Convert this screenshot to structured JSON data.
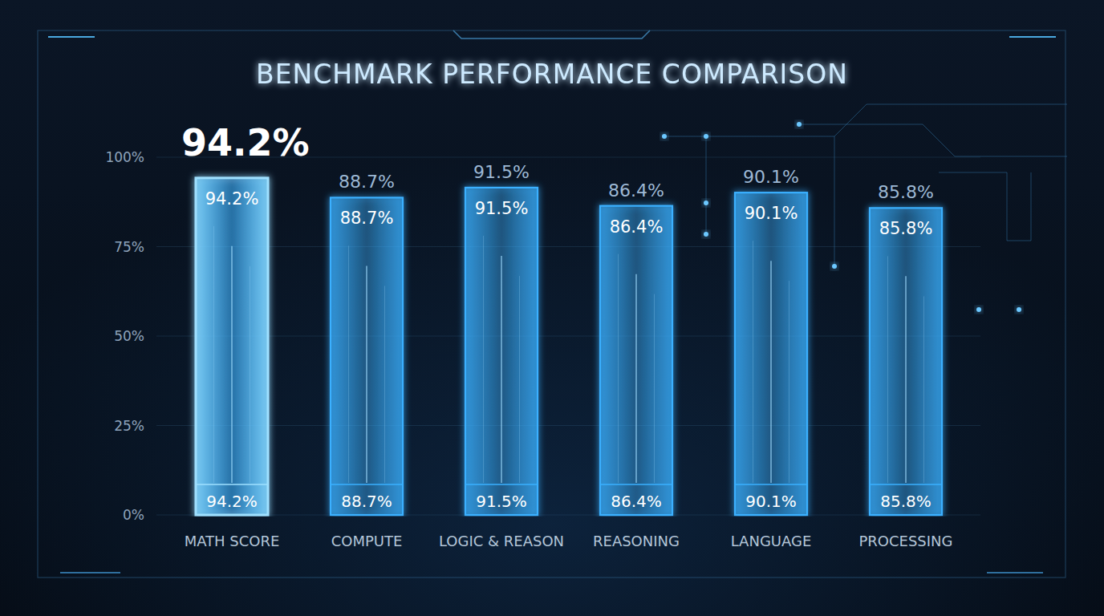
{
  "chart_data": {
    "type": "bar",
    "title": "BENCHMARK PERFORMANCE COMPARISON",
    "categories": [
      "MATH SCORE",
      "COMPUTE",
      "LOGIC & REASON",
      "REASONING",
      "LANGUAGE",
      "PROCESSING"
    ],
    "values": [
      94.2,
      88.7,
      91.5,
      86.4,
      90.1,
      85.8
    ],
    "value_labels": [
      "94.2%",
      "88.7%",
      "91.5%",
      "86.4%",
      "90.1%",
      "85.8%"
    ],
    "color": "#3ab0ff",
    "ylim": [
      0,
      100
    ],
    "yticks": [
      {
        "value": 0,
        "label": "0%"
      },
      {
        "value": 25,
        "label": "25%"
      },
      {
        "value": 50,
        "label": "50%"
      },
      {
        "value": 75,
        "label": "75%"
      },
      {
        "value": 100,
        "label": "100%"
      }
    ],
    "grid": true,
    "data_labels": true
  }
}
